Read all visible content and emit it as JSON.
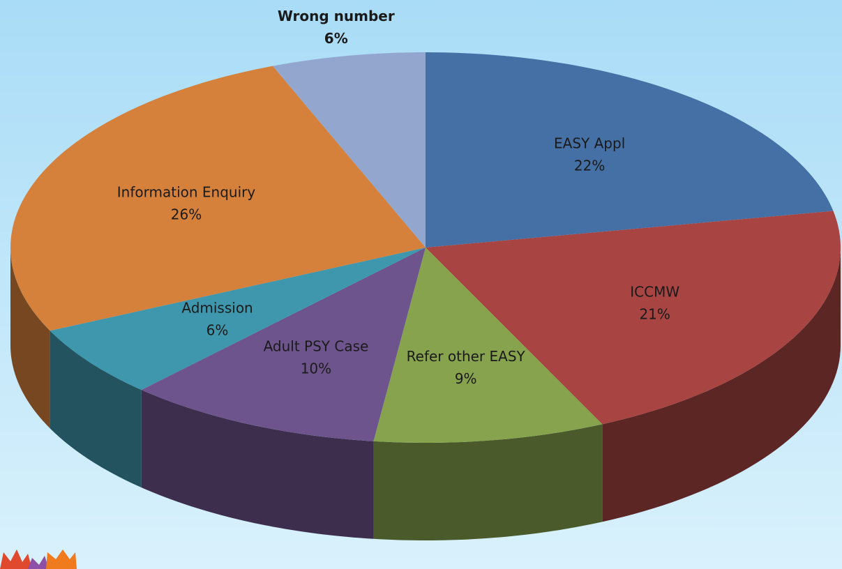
{
  "chart_data": {
    "type": "pie",
    "categories": [
      "EASY Appl",
      "ICCMW",
      "Refer other EASY",
      "Adult PSY Case",
      "Admission",
      "Information Enquiry",
      "Wrong number"
    ],
    "values": [
      22,
      21,
      9,
      10,
      6,
      26,
      6
    ],
    "value_labels": [
      "22%",
      "21%",
      "9%",
      "10%",
      "6%",
      "26%",
      "6%"
    ],
    "colors": [
      "#4470a5",
      "#a84543",
      "#87a34d",
      "#6e548d",
      "#3e97ad",
      "#d6813b",
      "#93a7ce"
    ]
  }
}
